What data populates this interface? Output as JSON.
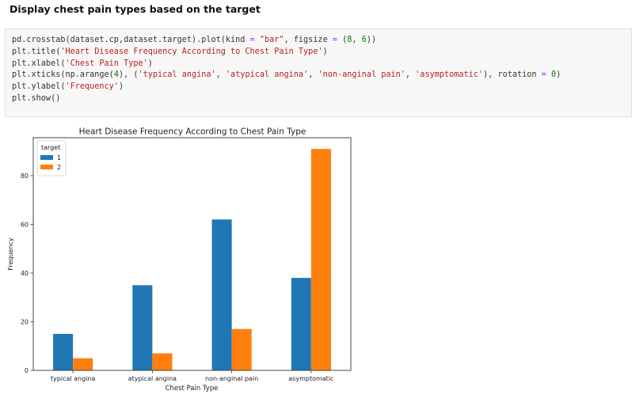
{
  "notebook": {
    "heading": "Display chest pain types based on the target",
    "code_lines": [
      [
        {
          "t": "pd.crosstab(dataset.cp,dataset.target).plot(kind ",
          "c": "plain"
        },
        {
          "t": "=",
          "c": "op"
        },
        {
          "t": " ",
          "c": "plain"
        },
        {
          "t": "\"bar\"",
          "c": "str"
        },
        {
          "t": ", figsize ",
          "c": "plain"
        },
        {
          "t": "=",
          "c": "op"
        },
        {
          "t": " (",
          "c": "plain"
        },
        {
          "t": "8",
          "c": "num"
        },
        {
          "t": ", ",
          "c": "plain"
        },
        {
          "t": "6",
          "c": "num"
        },
        {
          "t": "))",
          "c": "plain"
        }
      ],
      [
        {
          "t": "plt.title(",
          "c": "plain"
        },
        {
          "t": "'Heart Disease Frequency According to Chest Pain Type'",
          "c": "str"
        },
        {
          "t": ")",
          "c": "plain"
        }
      ],
      [
        {
          "t": "plt.xlabel(",
          "c": "plain"
        },
        {
          "t": "'Chest Pain Type'",
          "c": "str"
        },
        {
          "t": ")",
          "c": "plain"
        }
      ],
      [
        {
          "t": "plt.xticks(np.arange(",
          "c": "plain"
        },
        {
          "t": "4",
          "c": "num"
        },
        {
          "t": "), (",
          "c": "plain"
        },
        {
          "t": "'typical angina'",
          "c": "str"
        },
        {
          "t": ", ",
          "c": "plain"
        },
        {
          "t": "'atypical angina'",
          "c": "str"
        },
        {
          "t": ", ",
          "c": "plain"
        },
        {
          "t": "'non-anginal pain'",
          "c": "str"
        },
        {
          "t": ", ",
          "c": "plain"
        },
        {
          "t": "'asymptomatic'",
          "c": "str"
        },
        {
          "t": "), rotation ",
          "c": "plain"
        },
        {
          "t": "=",
          "c": "op"
        },
        {
          "t": " ",
          "c": "plain"
        },
        {
          "t": "0",
          "c": "num"
        },
        {
          "t": ")",
          "c": "plain"
        }
      ],
      [
        {
          "t": "plt.ylabel(",
          "c": "plain"
        },
        {
          "t": "'Frequency'",
          "c": "str"
        },
        {
          "t": ")",
          "c": "plain"
        }
      ],
      [
        {
          "t": "plt.show()",
          "c": "plain"
        }
      ]
    ],
    "syntax_colors": {
      "plain": "#333333",
      "str": "#ba2121",
      "op": "#aa22ff",
      "num": "#008000"
    }
  },
  "chart_data": {
    "type": "bar",
    "title": "Heart Disease Frequency According to Chest Pain Type",
    "xlabel": "Chest Pain Type",
    "ylabel": "Frequency",
    "categories": [
      "typical angina",
      "atypical angina",
      "non-anginal pain",
      "asymptomatic"
    ],
    "series": [
      {
        "name": "1",
        "values": [
          15,
          35,
          62,
          38
        ],
        "color": "#1f77b4"
      },
      {
        "name": "2",
        "values": [
          5,
          7,
          17,
          91
        ],
        "color": "#ff7f0e"
      }
    ],
    "ylim": [
      0,
      95.6
    ],
    "yticks": [
      0,
      20,
      40,
      60,
      80
    ],
    "legend_title": "target",
    "legend_position": "upper left",
    "grid": false
  }
}
